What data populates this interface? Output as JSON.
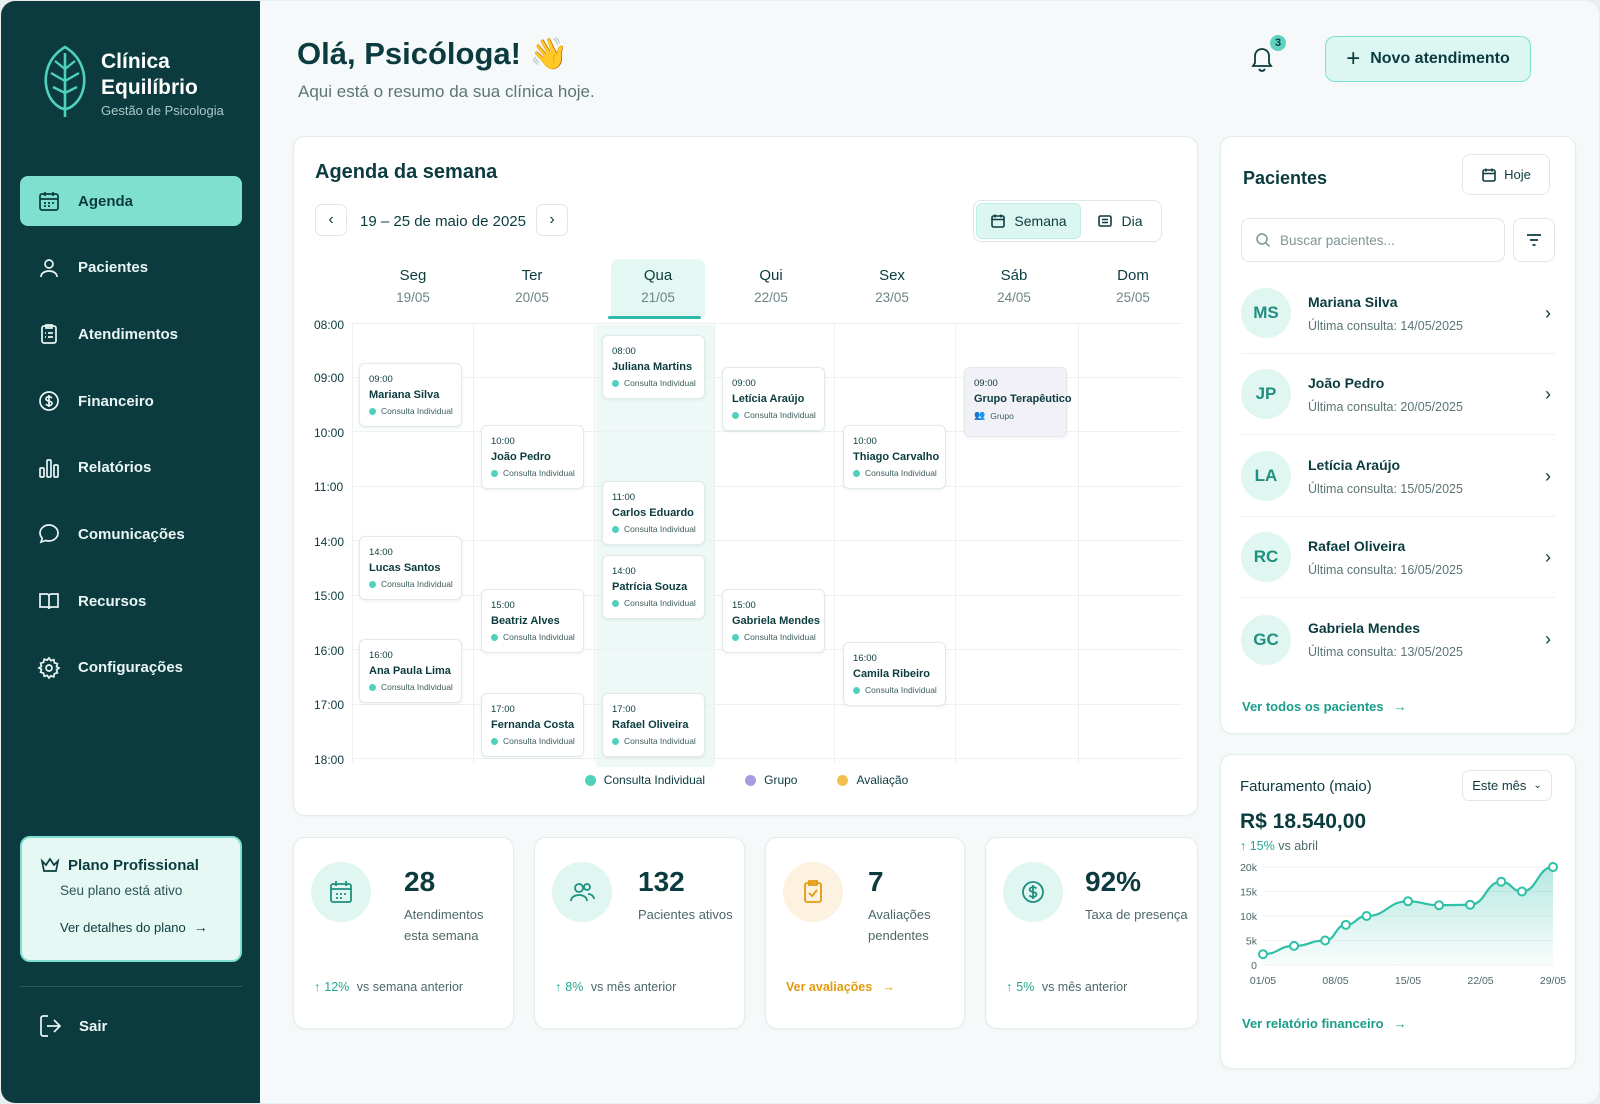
{
  "brand": {
    "name_line1": "Clínica",
    "name_line2": "Equilíbrio",
    "subtitle": "Gestão de Psicologia"
  },
  "sidebar": {
    "items": [
      {
        "label": "Agenda",
        "icon": "calendar-icon",
        "active": true
      },
      {
        "label": "Pacientes",
        "icon": "user-icon",
        "active": false
      },
      {
        "label": "Atendimentos",
        "icon": "clipboard-icon",
        "active": false
      },
      {
        "label": "Financeiro",
        "icon": "dollar-icon",
        "active": false
      },
      {
        "label": "Relatórios",
        "icon": "bar-chart-icon",
        "active": false
      },
      {
        "label": "Comunicações",
        "icon": "chat-icon",
        "active": false
      },
      {
        "label": "Recursos",
        "icon": "book-icon",
        "active": false
      },
      {
        "label": "Configurações",
        "icon": "gear-icon",
        "active": false
      }
    ],
    "plan": {
      "title": "Plano Profissional",
      "status": "Seu plano está ativo",
      "link": "Ver detalhes do plano"
    },
    "logout": "Sair"
  },
  "header": {
    "greeting": "Olá, Psicóloga! 👋",
    "subtitle": "Aqui está o resumo da sua clínica hoje.",
    "notifications_count": "3",
    "new_button": "Novo atendimento"
  },
  "agenda": {
    "title": "Agenda da semana",
    "range": "19 – 25 de maio de 2025",
    "view_week": "Semana",
    "view_day": "Dia",
    "days": [
      {
        "name": "Seg",
        "date": "19/05"
      },
      {
        "name": "Ter",
        "date": "20/05"
      },
      {
        "name": "Qua",
        "date": "21/05"
      },
      {
        "name": "Qui",
        "date": "22/05"
      },
      {
        "name": "Sex",
        "date": "23/05"
      },
      {
        "name": "Sáb",
        "date": "24/05"
      },
      {
        "name": "Dom",
        "date": "25/05"
      }
    ],
    "hours": [
      "08:00",
      "09:00",
      "10:00",
      "11:00",
      "14:00",
      "15:00",
      "16:00",
      "17:00",
      "18:00"
    ],
    "appointments": [
      {
        "time": "09:00",
        "name": "Mariana Silva",
        "type": "Consulta Individual"
      },
      {
        "time": "14:00",
        "name": "Lucas Santos",
        "type": "Consulta Individual"
      },
      {
        "time": "16:00",
        "name": "Ana Paula Lima",
        "type": "Consulta Individual"
      },
      {
        "time": "10:00",
        "name": "João Pedro",
        "type": "Consulta Individual"
      },
      {
        "time": "15:00",
        "name": "Beatriz Alves",
        "type": "Consulta Individual"
      },
      {
        "time": "17:00",
        "name": "Fernanda Costa",
        "type": "Consulta Individual"
      },
      {
        "time": "08:00",
        "name": "Juliana Martins",
        "type": "Consulta Individual"
      },
      {
        "time": "11:00",
        "name": "Carlos Eduardo",
        "type": "Consulta Individual"
      },
      {
        "time": "14:00",
        "name": "Patrícia Souza",
        "type": "Consulta Individual"
      },
      {
        "time": "17:00",
        "name": "Rafael Oliveira",
        "type": "Consulta Individual"
      },
      {
        "time": "09:00",
        "name": "Letícia Araújo",
        "type": "Consulta Individual"
      },
      {
        "time": "15:00",
        "name": "Gabriela Mendes",
        "type": "Consulta Individual"
      },
      {
        "time": "10:00",
        "name": "Thiago Carvalho",
        "type": "Consulta Individual"
      },
      {
        "time": "16:00",
        "name": "Camila Ribeiro",
        "type": "Consulta Individual"
      },
      {
        "time": "09:00",
        "name": "Grupo Terapêutico",
        "type": "Grupo"
      }
    ],
    "legend": [
      {
        "label": "Consulta Individual",
        "color": "#4fd1bd"
      },
      {
        "label": "Grupo",
        "color": "#a99be0"
      },
      {
        "label": "Avaliação",
        "color": "#f4c04d"
      }
    ]
  },
  "stats": [
    {
      "value": "28",
      "label_line1": "Atendimentos",
      "label_line2": "esta semana",
      "delta": "12%",
      "delta_text": "vs semana anterior",
      "icon": "calendar-icon"
    },
    {
      "value": "132",
      "label_line1": "Pacientes ativos",
      "label_line2": "",
      "delta": "8%",
      "delta_text": "vs mês anterior",
      "icon": "users-icon"
    },
    {
      "value": "7",
      "label_line1": "Avaliações",
      "label_line2": "pendentes",
      "link": "Ver avaliações",
      "icon": "clipboard-check-icon"
    },
    {
      "value": "92%",
      "label_line1": "Taxa de presença",
      "label_line2": "",
      "delta": "5%",
      "delta_text": "vs mês anterior",
      "icon": "dollar-icon"
    }
  ],
  "patients": {
    "title": "Pacientes",
    "today_button": "Hoje",
    "search_placeholder": "Buscar pacientes...",
    "items": [
      {
        "initials": "MS",
        "name": "Mariana Silva",
        "last": "Última consulta: 14/05/2025"
      },
      {
        "initials": "JP",
        "name": "João Pedro",
        "last": "Última consulta: 20/05/2025"
      },
      {
        "initials": "LA",
        "name": "Letícia Araújo",
        "last": "Última consulta: 15/05/2025"
      },
      {
        "initials": "RC",
        "name": "Rafael Oliveira",
        "last": "Última consulta: 16/05/2025"
      },
      {
        "initials": "GC",
        "name": "Gabriela Mendes",
        "last": "Última consulta: 13/05/2025"
      }
    ],
    "view_all": "Ver todos os pacientes"
  },
  "revenue": {
    "title": "Faturamento (maio)",
    "period_select": "Este mês",
    "value": "R$ 18.540,00",
    "delta": "15%",
    "delta_text": "vs abril",
    "link": "Ver relatório financeiro"
  },
  "chart_data": {
    "type": "area",
    "title": "Faturamento (maio)",
    "x": [
      "01/05",
      "04/05",
      "07/05",
      "09/05",
      "11/05",
      "15/05",
      "18/05",
      "21/05",
      "24/05",
      "26/05",
      "29/05"
    ],
    "values": [
      2200,
      3900,
      5000,
      8200,
      10000,
      13000,
      12200,
      12300,
      17000,
      15000,
      20000
    ],
    "xticks": [
      "01/05",
      "08/05",
      "15/05",
      "22/05",
      "29/05"
    ],
    "yticks": [
      "0",
      "5k",
      "10k",
      "15k",
      "20k"
    ],
    "ylim": [
      0,
      20000
    ],
    "grid": true,
    "color": "#2fc0a8"
  },
  "colors": {
    "sidebar": "#0b3b3e",
    "accent": "#7fe0d0",
    "accent_text": "#1a9e8b",
    "warning": "#e39a10"
  }
}
